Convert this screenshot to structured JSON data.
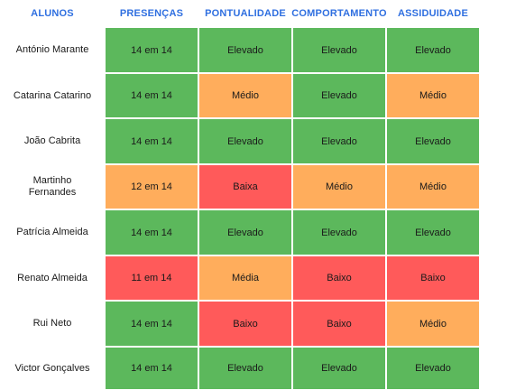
{
  "headers": [
    "ALUNOS",
    "PRESENÇAS",
    "PONTUALIDADE",
    "COMPORTAMENTO",
    "ASSIDUIDADE"
  ],
  "colors": {
    "high": "#5cb85c",
    "medium": "#ffad5c",
    "low": "#ff5a5a",
    "header_text": "#2f6fe0"
  },
  "rows": [
    {
      "name": "António Marante",
      "presencas": "14 em 14",
      "pontualidade": "Elevado",
      "comportamento": "Elevado",
      "assiduidade": "Elevado",
      "levels": [
        "high",
        "high",
        "high",
        "high"
      ]
    },
    {
      "name": "Catarina Catarino",
      "presencas": "14 em 14",
      "pontualidade": "Médio",
      "comportamento": "Elevado",
      "assiduidade": "Médio",
      "levels": [
        "high",
        "medium",
        "high",
        "medium"
      ]
    },
    {
      "name": "João Cabrita",
      "presencas": "14 em 14",
      "pontualidade": "Elevado",
      "comportamento": "Elevado",
      "assiduidade": "Elevado",
      "levels": [
        "high",
        "high",
        "high",
        "high"
      ]
    },
    {
      "name": "Martinho Fernandes",
      "presencas": "12 em 14",
      "pontualidade": "Baixa",
      "comportamento": "Médio",
      "assiduidade": "Médio",
      "levels": [
        "medium",
        "low",
        "medium",
        "medium"
      ]
    },
    {
      "name": "Patrícia Almeida",
      "presencas": "14 em 14",
      "pontualidade": "Elevado",
      "comportamento": "Elevado",
      "assiduidade": "Elevado",
      "levels": [
        "high",
        "high",
        "high",
        "high"
      ]
    },
    {
      "name": "Renato Almeida",
      "presencas": "11 em 14",
      "pontualidade": "Média",
      "comportamento": "Baixo",
      "assiduidade": "Baixo",
      "levels": [
        "low",
        "medium",
        "low",
        "low"
      ]
    },
    {
      "name": "Rui Neto",
      "presencas": "14 em 14",
      "pontualidade": "Baixo",
      "comportamento": "Baixo",
      "assiduidade": "Médio",
      "levels": [
        "high",
        "low",
        "low",
        "medium"
      ]
    },
    {
      "name": "Victor Gonçalves",
      "presencas": "14 em 14",
      "pontualidade": "Elevado",
      "comportamento": "Elevado",
      "assiduidade": "Elevado",
      "levels": [
        "high",
        "high",
        "high",
        "high"
      ]
    }
  ]
}
